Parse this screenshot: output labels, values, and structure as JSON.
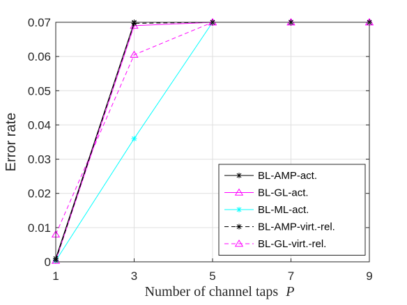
{
  "chart_data": {
    "type": "line",
    "x": [
      1,
      3,
      5,
      7,
      9
    ],
    "xticks": [
      "1",
      "3",
      "5",
      "7",
      "9"
    ],
    "yticks": [
      "0",
      "0.01",
      "0.02",
      "0.03",
      "0.04",
      "0.05",
      "0.06",
      "0.07"
    ],
    "xlim": [
      1,
      9
    ],
    "ylim": [
      0,
      0.07
    ],
    "xlabel": "Number of channel taps",
    "xlabel_var": "P",
    "ylabel": "Error rate",
    "grid": true,
    "legend_position": "bottom-right",
    "series": [
      {
        "name": "BL-AMP-act.",
        "values": [
          0.001,
          0.07,
          0.07,
          0.07,
          0.07
        ],
        "color": "#000000",
        "dash": "solid",
        "marker": "asterisk"
      },
      {
        "name": "BL-GL-act.",
        "values": [
          0.0003,
          0.069,
          0.07,
          0.07,
          0.07
        ],
        "color": "#ff00ff",
        "dash": "solid",
        "marker": "triangle"
      },
      {
        "name": "BL-ML-act.",
        "values": [
          0.0003,
          0.036,
          0.07,
          0.07,
          0.07
        ],
        "color": "#00ffff",
        "dash": "solid",
        "marker": "asterisk"
      },
      {
        "name": "BL-AMP-virt.-rel.",
        "values": [
          0.0005,
          0.0697,
          0.07,
          0.07,
          0.07
        ],
        "color": "#000000",
        "dash": "dashed",
        "marker": "asterisk"
      },
      {
        "name": "BL-GL-virt.-rel.",
        "values": [
          0.008,
          0.0605,
          0.07,
          0.07,
          0.07
        ],
        "color": "#ff00ff",
        "dash": "dashed",
        "marker": "triangle"
      }
    ]
  }
}
